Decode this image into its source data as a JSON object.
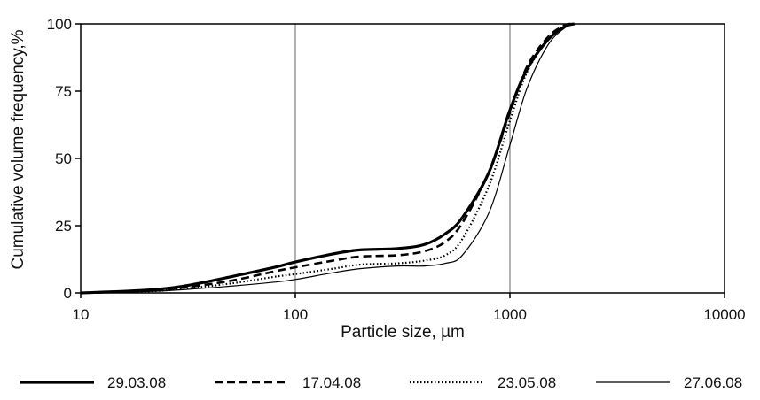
{
  "chart_data": {
    "type": "line",
    "title": "",
    "xlabel": "Particle size, µm",
    "ylabel": "Cumulative volume frequency,%",
    "x_scale": "log",
    "xlim": [
      10,
      10000
    ],
    "ylim": [
      0,
      100
    ],
    "x_ticks": [
      10,
      100,
      1000,
      10000
    ],
    "x_tick_labels": [
      "10",
      "100",
      "1000",
      "10000"
    ],
    "y_ticks": [
      0,
      25,
      50,
      75,
      100
    ],
    "y_tick_labels": [
      "0",
      "25",
      "50",
      "75",
      "100"
    ],
    "grid": {
      "x_major": true,
      "y_major": false
    },
    "legend": {
      "placement": "bottom"
    },
    "series": [
      {
        "name": "29.03.08",
        "style": "solid-thick",
        "points": [
          [
            10,
            0
          ],
          [
            20,
            1
          ],
          [
            30,
            2.5
          ],
          [
            50,
            6
          ],
          [
            80,
            9.5
          ],
          [
            100,
            11.5
          ],
          [
            150,
            14.5
          ],
          [
            200,
            16
          ],
          [
            300,
            16.5
          ],
          [
            400,
            18
          ],
          [
            500,
            22
          ],
          [
            600,
            28
          ],
          [
            800,
            45
          ],
          [
            1000,
            68
          ],
          [
            1200,
            83
          ],
          [
            1500,
            94
          ],
          [
            1800,
            99
          ],
          [
            2000,
            100
          ]
        ]
      },
      {
        "name": "17.04.08",
        "style": "dashed",
        "points": [
          [
            10,
            0
          ],
          [
            20,
            0.8
          ],
          [
            30,
            2
          ],
          [
            50,
            4.5
          ],
          [
            80,
            8
          ],
          [
            100,
            9.5
          ],
          [
            150,
            12
          ],
          [
            200,
            13.5
          ],
          [
            300,
            14
          ],
          [
            400,
            15.5
          ],
          [
            500,
            19
          ],
          [
            600,
            26
          ],
          [
            800,
            45
          ],
          [
            1000,
            67
          ],
          [
            1200,
            84
          ],
          [
            1500,
            95
          ],
          [
            1800,
            99.5
          ],
          [
            2000,
            100
          ]
        ]
      },
      {
        "name": "23.05.08",
        "style": "dotted",
        "points": [
          [
            10,
            0
          ],
          [
            20,
            0.5
          ],
          [
            30,
            1.5
          ],
          [
            50,
            3.5
          ],
          [
            80,
            6
          ],
          [
            100,
            7
          ],
          [
            150,
            9
          ],
          [
            200,
            10.5
          ],
          [
            300,
            11
          ],
          [
            400,
            12
          ],
          [
            500,
            14
          ],
          [
            600,
            20
          ],
          [
            800,
            40
          ],
          [
            1000,
            64
          ],
          [
            1200,
            82
          ],
          [
            1500,
            94
          ],
          [
            1800,
            99
          ],
          [
            2000,
            100
          ]
        ]
      },
      {
        "name": "27.06.08",
        "style": "solid-thin",
        "points": [
          [
            10,
            0
          ],
          [
            20,
            0.5
          ],
          [
            30,
            1.2
          ],
          [
            50,
            2.5
          ],
          [
            80,
            4
          ],
          [
            100,
            5
          ],
          [
            150,
            7.5
          ],
          [
            200,
            9
          ],
          [
            300,
            10
          ],
          [
            400,
            10
          ],
          [
            500,
            11
          ],
          [
            600,
            14
          ],
          [
            800,
            30
          ],
          [
            1000,
            55
          ],
          [
            1200,
            76
          ],
          [
            1500,
            92
          ],
          [
            1800,
            98.5
          ],
          [
            2000,
            100
          ]
        ]
      }
    ]
  }
}
